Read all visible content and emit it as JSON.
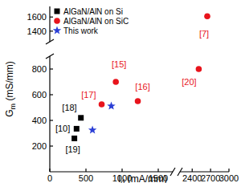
{
  "chart_data": {
    "type": "scatter",
    "xlabel": [
      "I",
      "d",
      " (mA/mm)"
    ],
    "ylabel": [
      "G",
      "m",
      " (mS/mm)"
    ],
    "xlim": [
      0,
      3000
    ],
    "x_break": [
      1700,
      2200
    ],
    "ylim": [
      0,
      1750
    ],
    "y_break": [
      900,
      1250
    ],
    "xticks": [
      0,
      500,
      1000,
      1500,
      2400,
      2700,
      3000
    ],
    "yticks": [
      200,
      400,
      600,
      800,
      1400,
      1600
    ],
    "legend": "upper left",
    "series": [
      {
        "name": "AlGaN/AlN on Si",
        "color": "#000000",
        "marker": "square",
        "x": [
          340,
          370,
          430
        ],
        "values": [
          260,
          335,
          420
        ],
        "point_labels": [
          "[19]",
          "[10]",
          "[18]"
        ]
      },
      {
        "name": "AlGaN/AlN on SiC",
        "color": "#e8141c",
        "marker": "circle",
        "x": [
          717,
          913,
          1217,
          2507,
          2646
        ],
        "values": [
          525,
          700,
          550,
          800,
          1610
        ],
        "point_labels": [
          "[17]",
          "[15]",
          "[16]",
          "[20]",
          "[7]"
        ]
      },
      {
        "name": "This work",
        "color": "#2b3fd6",
        "marker": "star",
        "x": [
          590,
          850
        ],
        "values": [
          325,
          512
        ]
      }
    ]
  }
}
